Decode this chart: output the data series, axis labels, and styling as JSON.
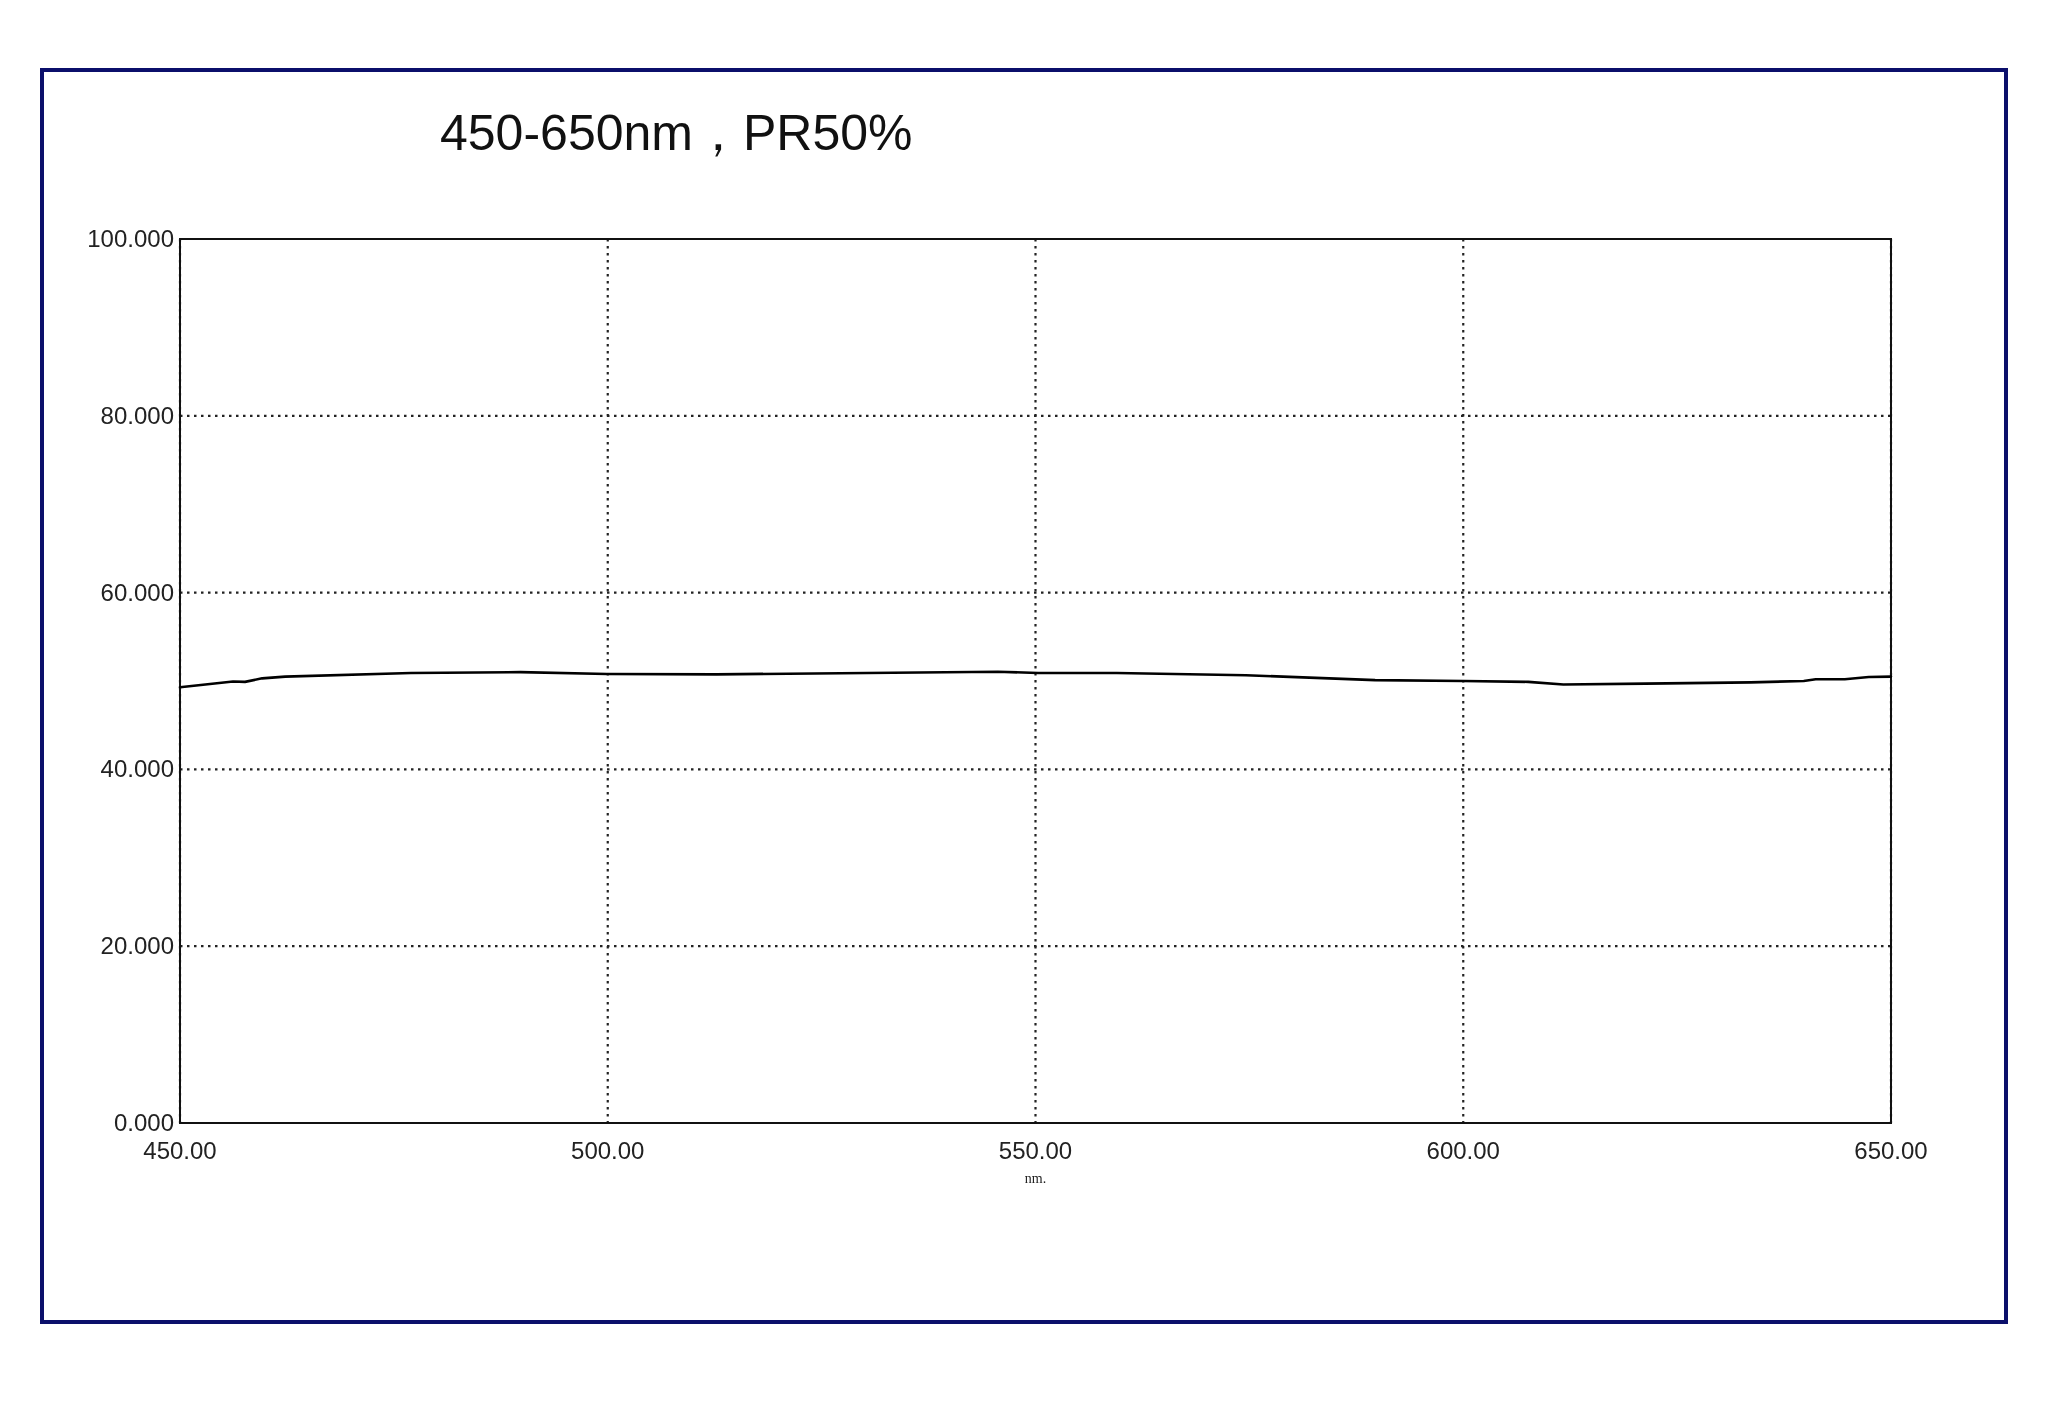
{
  "chart_data": {
    "type": "line",
    "title": "450-650nm，PR50%",
    "xlabel": "nm.",
    "x": [
      450,
      456.2,
      457.6,
      459.6,
      462.3,
      477,
      489.8,
      499.9,
      512.7,
      545.6,
      550.3,
      559.5,
      574.6,
      589.7,
      600,
      607.6,
      611.7,
      621.3,
      633.6,
      639.8,
      641.2,
      644.6,
      647.4,
      650
    ],
    "values": [
      49.3,
      49.95,
      49.9,
      50.3,
      50.5,
      50.9,
      51.0,
      50.8,
      50.75,
      51.05,
      50.9,
      50.9,
      50.65,
      50.1,
      50.0,
      49.9,
      49.6,
      49.7,
      49.85,
      50.0,
      50.2,
      50.2,
      50.45,
      50.5
    ],
    "color": "#000000",
    "xlim": [
      450,
      650
    ],
    "ylim": [
      0,
      100
    ],
    "xticks": [
      {
        "value": 450,
        "label": "450.00"
      },
      {
        "value": 500,
        "label": "500.00"
      },
      {
        "value": 550,
        "label": "550.00"
      },
      {
        "value": 600,
        "label": "600.00"
      },
      {
        "value": 650,
        "label": "650.00"
      }
    ],
    "yticks": [
      {
        "value": 0,
        "label": "0.000"
      },
      {
        "value": 20,
        "label": "20.000"
      },
      {
        "value": 40,
        "label": "40.000"
      },
      {
        "value": 60,
        "label": "60.000"
      },
      {
        "value": 80,
        "label": "80.000"
      },
      {
        "value": 100,
        "label": "100.000"
      }
    ],
    "grid": true
  }
}
